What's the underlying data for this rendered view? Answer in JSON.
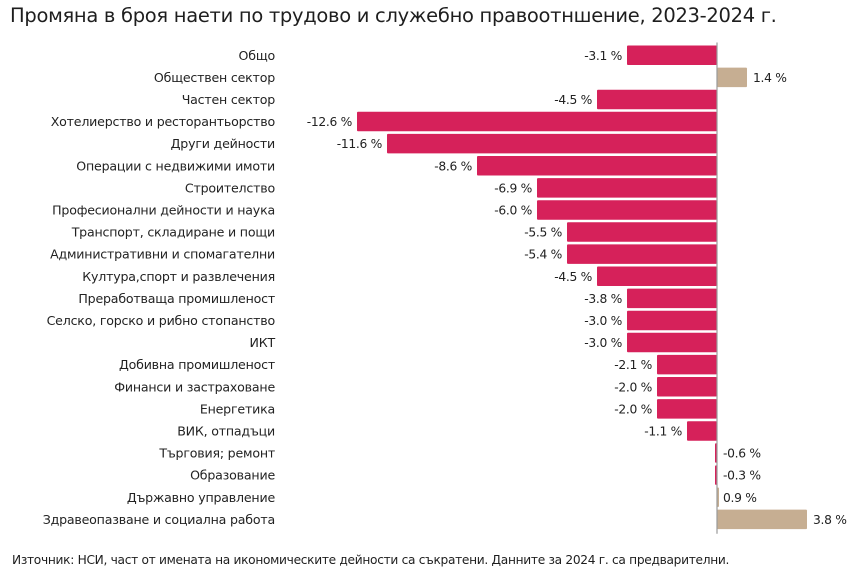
{
  "chart_data": {
    "type": "bar",
    "orientation": "horizontal",
    "title": "Промяна в броя наети по трудово и служебно правоотншение, 2023-2024 г.",
    "xlabel": "",
    "ylabel": "",
    "unit": "%",
    "grid": false,
    "legend": "none",
    "footnote": "Източник: НСИ, част от имената на икономическите дейности са съкратени. Данните за 2024 г. са предварителни.",
    "colors": {
      "negative": "#d6215a",
      "positive": "#c6ae92",
      "axis": "#999999"
    },
    "categories": [
      "Общо",
      "Обществен сектор",
      "Частен сектор",
      "Хотелиерство и ресторантьорство",
      "Други дейности",
      "Операции с недвижими имоти",
      "Строителство",
      "Професионални дейности и наука",
      "Транспорт, складиране и пощи",
      "Административни и спомагателни",
      "Култура,спорт и развлечения",
      "Преработваща промишленост",
      "Селско, горско и рибно стопанство",
      "ИКТ",
      "Добивна промишленост",
      "Финанси и застраховане",
      "Енергетика",
      "ВИК, отпадъци",
      "Търговия; ремонт",
      "Образование",
      "Държавно управление",
      "Здравеопазване и социална работа"
    ],
    "values": [
      -3.1,
      1.4,
      -4.5,
      -12.6,
      -11.6,
      -8.6,
      -6.9,
      -6.0,
      -5.5,
      -5.4,
      -4.5,
      -3.8,
      -3.0,
      -3.0,
      -2.1,
      -2.0,
      -2.0,
      -1.1,
      -0.6,
      -0.3,
      0.9,
      3.8
    ],
    "labels": [
      "-3.1 %",
      "1.4 %",
      "-4.5 %",
      "-12.6 %",
      "-11.6 %",
      "-8.6 %",
      "-6.9 %",
      "-6.0 %",
      "-5.5 %",
      "-5.4 %",
      "-4.5 %",
      "-3.8 %",
      "-3.0 %",
      "-3.0 %",
      "-2.1 %",
      "-2.0 %",
      "-2.0 %",
      "-1.1 %",
      "-0.6 %",
      "-0.3 %",
      "0.9 %",
      "3.8 %"
    ],
    "xlim": [
      -12.6,
      4.8
    ]
  }
}
